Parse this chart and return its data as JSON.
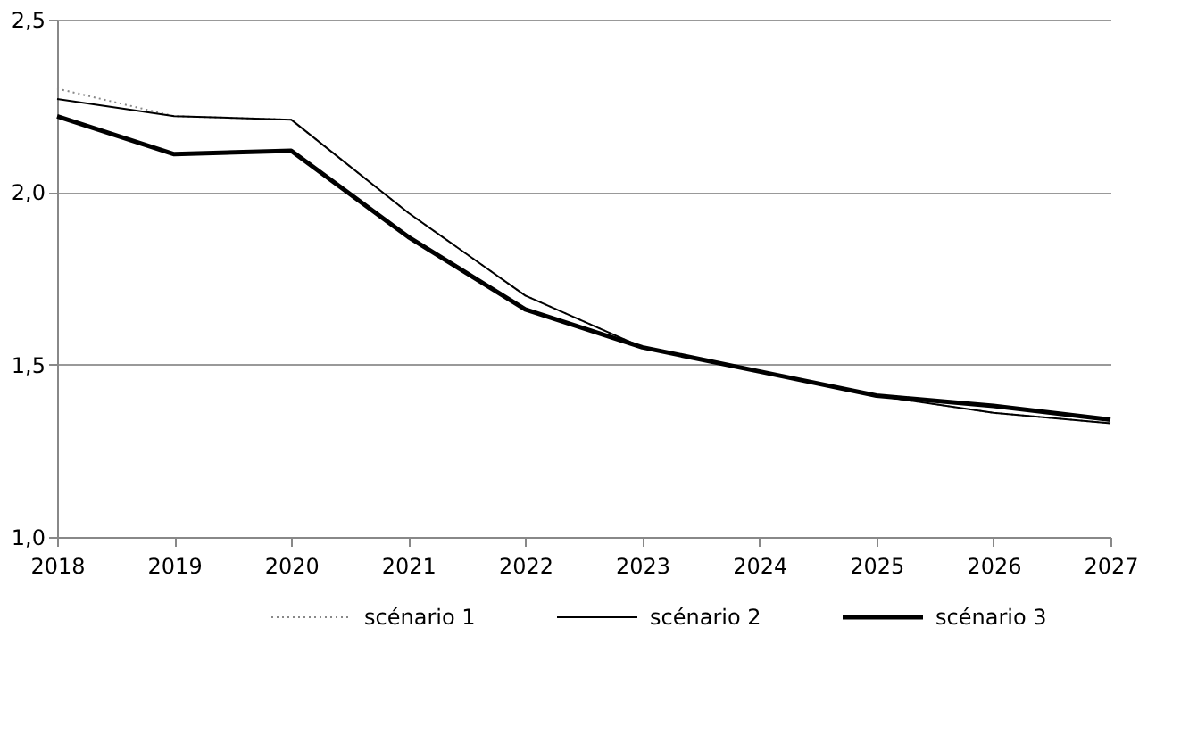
{
  "chart_data": {
    "type": "line",
    "categories": [
      "2018",
      "2019",
      "2020",
      "2021",
      "2022",
      "2023",
      "2024",
      "2025",
      "2026",
      "2027"
    ],
    "series": [
      {
        "name": "scénario 1",
        "color": "#888888",
        "line_style": "dotted",
        "values": [
          2.3,
          2.22,
          2.21,
          1.94,
          1.7,
          1.55,
          1.48,
          1.41,
          1.36,
          1.33
        ]
      },
      {
        "name": "scénario 2",
        "color": "#000000",
        "line_style": "solid",
        "values": [
          2.27,
          2.22,
          2.21,
          1.94,
          1.7,
          1.55,
          1.48,
          1.41,
          1.36,
          1.33
        ]
      },
      {
        "name": "scénario 3",
        "color": "#000000",
        "line_style": "solid",
        "values": [
          2.22,
          2.11,
          2.12,
          1.87,
          1.66,
          1.55,
          1.48,
          1.41,
          1.38,
          1.34
        ]
      }
    ],
    "ylim": [
      1.0,
      2.5
    ],
    "yticks": [
      {
        "value": 1.0,
        "label": "1,0"
      },
      {
        "value": 1.5,
        "label": "1,5"
      },
      {
        "value": 2.0,
        "label": "2,0"
      },
      {
        "value": 2.5,
        "label": "2,5"
      }
    ],
    "grid": "y",
    "legend": "bottom",
    "marker": "none"
  }
}
